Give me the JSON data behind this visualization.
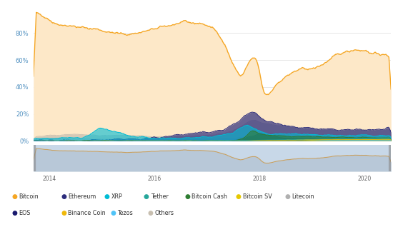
{
  "col_bitcoin": "#f5a623",
  "col_bitcoin_fill": "#fde8c8",
  "col_eth": "#2c2c7c",
  "col_xrp": "#00bcd4",
  "col_tether": "#26a69a",
  "col_bch": "#2e7d32",
  "col_bsv": "#e6c800",
  "col_ltc": "#b0b0b0",
  "col_eos": "#1a1a6e",
  "col_bnb": "#f0b90b",
  "col_tezos": "#4fc3f7",
  "col_others": "#c8bfb0",
  "col_nav_bg": "#c8d8e8",
  "col_nav_fill": "#b8c8d8",
  "col_nav_line": "#c8a060",
  "legend_row1": [
    {
      "label": "Bitcoin",
      "color": "#f5a623"
    },
    {
      "label": "Ethereum",
      "color": "#2c2c7c"
    },
    {
      "label": "XRP",
      "color": "#00bcd4"
    },
    {
      "label": "Tether",
      "color": "#26a69a"
    },
    {
      "label": "Bitcoin Cash",
      "color": "#2e7d32"
    },
    {
      "label": "Bitcoin SV",
      "color": "#e6c800"
    },
    {
      "label": "Litecoin",
      "color": "#b0b0b0"
    }
  ],
  "legend_row2": [
    {
      "label": "EOS",
      "color": "#1a1a6e"
    },
    {
      "label": "Binance Coin",
      "color": "#f0b90b"
    },
    {
      "label": "Tezos",
      "color": "#4fc3f7"
    },
    {
      "label": "Others",
      "color": "#c8bfb0"
    }
  ]
}
